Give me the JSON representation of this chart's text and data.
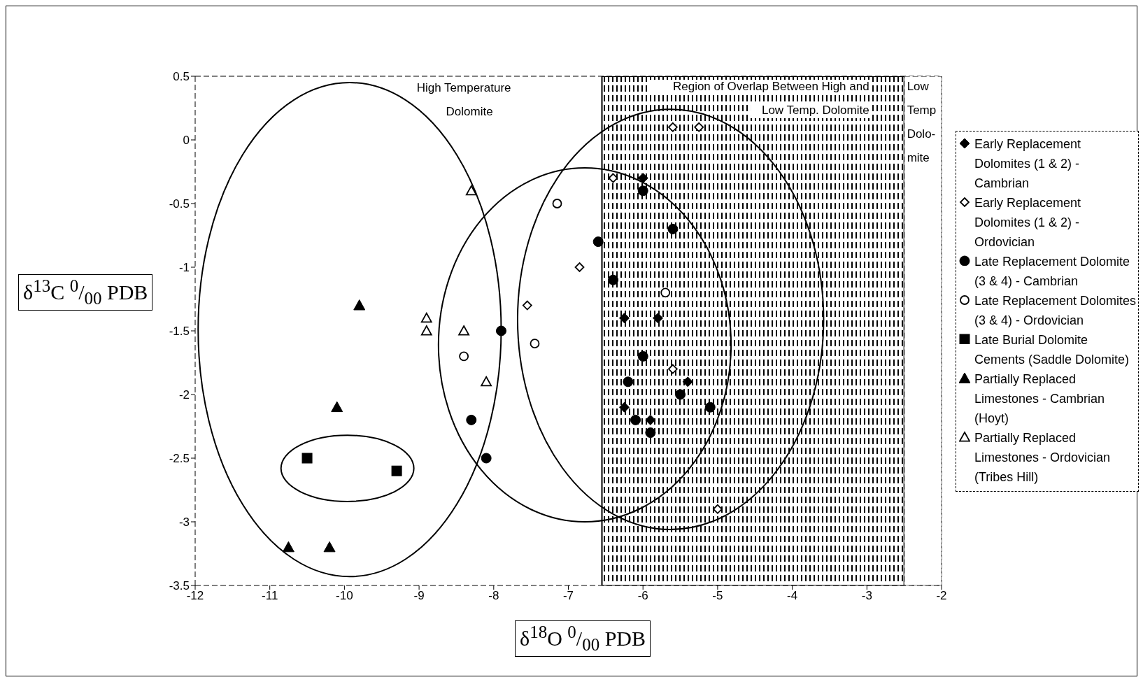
{
  "chart_data": {
    "type": "scatter",
    "xlabel": "δ$^{18}$O $^{0}$/$_{00}$ PDB",
    "ylabel": "δ$^{13}$C $^{0}$/$_{00}$ PDB",
    "xlim": [
      -12,
      -2
    ],
    "xticks": [
      -12,
      -11,
      -10,
      -9,
      -8,
      -7,
      -6,
      -5,
      -4,
      -3,
      -2
    ],
    "ylim": [
      -3.5,
      0.5
    ],
    "yticks": [
      -3.5,
      -3,
      -2.5,
      -2,
      -1.5,
      -1,
      -0.5,
      0,
      0.5
    ],
    "legend": "right",
    "annotations": [
      "High Temperature Dolomite"
    ],
    "bands": [
      {
        "axis": "x",
        "from": -6.55,
        "to": -2.5,
        "label": "Region of Overlap Between High and Low Temp. Dolomite",
        "color": "#000000"
      },
      {
        "axis": "x",
        "from": -2.5,
        "to": -2,
        "label": "Low Temp Dolo-mite",
        "color": "#ffffff"
      }
    ],
    "series": [
      {
        "name": "Early Replacement Dolomites (1 & 2) - Cambrian",
        "color": "#000000",
        "marker": "diamond",
        "x": [
          -6.0,
          -6.25,
          -5.8,
          -6.25,
          -5.9,
          -5.4
        ],
        "values": [
          -0.3,
          -1.4,
          -1.4,
          -2.1,
          -2.2,
          -1.9
        ]
      },
      {
        "name": "Early Replacement Dolomites (1 & 2) - Ordovician",
        "color": "#ffffff",
        "marker": "diamond",
        "x": [
          -5.6,
          -5.25,
          -6.4,
          -6.85,
          -7.55,
          -5.6,
          -5.0
        ],
        "values": [
          0.1,
          0.1,
          -0.3,
          -1.0,
          -1.3,
          -1.8,
          -2.9
        ]
      },
      {
        "name": "Late Replacement Dolomite (3 & 4) - Cambrian",
        "color": "#000000",
        "marker": "circle",
        "x": [
          -7.9,
          -8.3,
          -8.1,
          -6.6,
          -6.0,
          -5.6,
          -6.4,
          -6.0,
          -6.2,
          -5.5,
          -5.1,
          -6.1,
          -5.9
        ],
        "values": [
          -1.5,
          -2.2,
          -2.5,
          -0.8,
          -0.4,
          -0.7,
          -1.1,
          -1.7,
          -1.9,
          -2.0,
          -2.1,
          -2.2,
          -2.3
        ]
      },
      {
        "name": "Late Replacement Dolomites (3 & 4) - Ordovician",
        "color": "#ffffff",
        "marker": "circle",
        "x": [
          -7.15,
          -7.45,
          -8.4,
          -5.7
        ],
        "values": [
          -0.5,
          -1.6,
          -1.7,
          -1.2
        ]
      },
      {
        "name": "Late Burial Dolomite Cements (Saddle Dolomite)",
        "color": "#000000",
        "marker": "square",
        "x": [
          -10.5,
          -9.3
        ],
        "values": [
          -2.5,
          -2.6
        ]
      },
      {
        "name": "Partially Replaced Limestones - Cambrian (Hoyt)",
        "color": "#000000",
        "marker": "triangle",
        "x": [
          -9.8,
          -10.1,
          -10.75,
          -10.2
        ],
        "values": [
          -1.3,
          -2.1,
          -3.2,
          -3.2
        ]
      },
      {
        "name": "Partially Replaced Limestones  - Ordovician (Tribes Hill)",
        "color": "#ffffff",
        "marker": "triangle",
        "x": [
          -8.3,
          -8.9,
          -8.9,
          -8.4,
          -8.1
        ],
        "values": [
          -0.4,
          -1.4,
          -1.5,
          -1.5,
          -1.9
        ]
      }
    ]
  }
}
